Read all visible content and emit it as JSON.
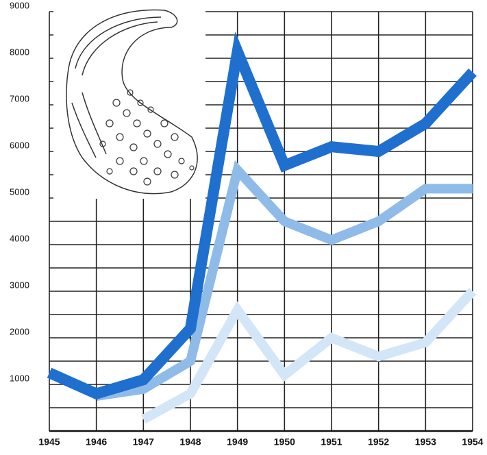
{
  "chart_data": {
    "type": "line",
    "x": [
      1945,
      1946,
      1947,
      1948,
      1949,
      1950,
      1951,
      1952,
      1953,
      1954
    ],
    "series": [
      {
        "color": "#1f6fcf",
        "values": [
          1250,
          800,
          1100,
          2200,
          8150,
          5700,
          6100,
          6000,
          6600,
          7700
        ]
      },
      {
        "color": "#8fbbe8",
        "values": [
          null,
          750,
          900,
          1500,
          5600,
          4500,
          4100,
          4500,
          5200,
          5200
        ]
      },
      {
        "color": "#d3e6f8",
        "values": [
          null,
          null,
          250,
          800,
          2600,
          1200,
          2000,
          1600,
          1900,
          3000
        ]
      }
    ],
    "xlim": [
      1945,
      1954
    ],
    "ylim": [
      0,
      9000
    ],
    "yticks": [
      1000,
      2000,
      3000,
      4000,
      5000,
      6000,
      7000,
      8000,
      9000
    ],
    "y_minor_ticks": [
      500,
      1500,
      2500,
      3500,
      4500,
      5500,
      6500,
      7500,
      8500
    ],
    "grid": true
  }
}
